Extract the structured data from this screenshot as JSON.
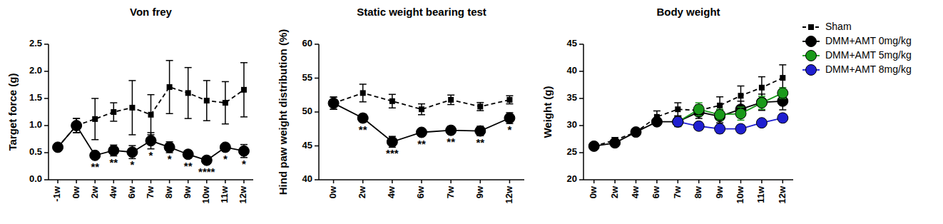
{
  "chart_data": [
    {
      "type": "line",
      "title": "Von frey",
      "y_label": "Target force (g)",
      "categories": [
        "-1w",
        "0w",
        "2w",
        "4w",
        "6w",
        "7w",
        "8w",
        "9w",
        "10w",
        "11w",
        "12w"
      ],
      "ylim": [
        0,
        2.5
      ],
      "yticks": [
        {
          "value": 0,
          "label": "0.0"
        },
        {
          "value": 0.5,
          "label": "0.5"
        },
        {
          "value": 1,
          "label": "1.0"
        },
        {
          "value": 1.5,
          "label": "1.5"
        },
        {
          "value": 2,
          "label": "2.0"
        },
        {
          "value": 2.5,
          "label": "2.5"
        }
      ],
      "series": [
        {
          "name": "Sham",
          "color": "#000000",
          "marker": "square",
          "line_style": "dashed",
          "values": [
            0.6,
            1.0,
            1.12,
            1.25,
            1.33,
            1.2,
            1.71,
            1.6,
            1.46,
            1.42,
            1.66
          ],
          "errors": [
            0.05,
            0.13,
            0.38,
            0.17,
            0.5,
            0.37,
            0.49,
            0.47,
            0.37,
            0.39,
            0.5
          ]
        },
        {
          "name": "DMM+AMT 0mg/kg",
          "color": "#000000",
          "marker": "circle",
          "line_style": "solid",
          "values": [
            0.6,
            1.0,
            0.45,
            0.54,
            0.51,
            0.72,
            0.6,
            0.47,
            0.36,
            0.6,
            0.53
          ],
          "errors": [
            0.06,
            0.13,
            0.05,
            0.1,
            0.12,
            0.15,
            0.1,
            0.07,
            0.04,
            0.06,
            0.12
          ],
          "significance": [
            null,
            null,
            "**",
            "**",
            "*",
            "*",
            "*",
            "**",
            "****",
            "*",
            "*"
          ]
        }
      ]
    },
    {
      "type": "line",
      "title": "Static weight bearing test",
      "y_label": "Hind paw weight distribution (%)",
      "categories": [
        "0w",
        "2w",
        "4w",
        "6w",
        "7w",
        "9w",
        "12w"
      ],
      "ylim": [
        40,
        60
      ],
      "yticks": [
        40,
        45,
        50,
        55,
        60
      ],
      "series": [
        {
          "name": "Sham",
          "color": "#000000",
          "marker": "square",
          "line_style": "dashed",
          "values": [
            51.3,
            52.8,
            51.6,
            50.4,
            51.8,
            50.8,
            51.8
          ],
          "errors": [
            0.9,
            1.3,
            1.0,
            0.8,
            0.7,
            0.6,
            0.6
          ]
        },
        {
          "name": "DMM+AMT 0mg/kg",
          "color": "#000000",
          "marker": "circle",
          "line_style": "solid",
          "values": [
            51.3,
            49.1,
            45.6,
            47.0,
            47.3,
            47.2,
            49.1
          ],
          "errors": [
            0.9,
            0.6,
            0.8,
            0.5,
            0.6,
            0.7,
            0.8
          ],
          "significance": [
            null,
            "**",
            "***",
            "**",
            "**",
            "**",
            "*"
          ]
        }
      ]
    },
    {
      "type": "line",
      "title": "Body weight",
      "y_label": "Weight (g)",
      "legend": "right",
      "categories": [
        "0w",
        "2w",
        "4w",
        "6w",
        "7w",
        "8w",
        "9w",
        "10w",
        "11w",
        "12w"
      ],
      "ylim": [
        20,
        45
      ],
      "yticks": [
        20,
        25,
        30,
        35,
        40,
        45
      ],
      "series": [
        {
          "name": "Sham",
          "color": "#000000",
          "marker": "square",
          "line_style": "dashed",
          "values": [
            26.2,
            27.3,
            28.8,
            31.6,
            33.0,
            32.8,
            33.7,
            35.5,
            37.0,
            38.8
          ],
          "errors": [
            0.4,
            0.5,
            0.5,
            1.1,
            1.2,
            1.0,
            1.6,
            1.8,
            2.0,
            2.4
          ]
        },
        {
          "name": "DMM+AMT 0mg/kg",
          "color": "#000000",
          "marker": "circle",
          "line_style": "solid",
          "values": [
            26.2,
            26.8,
            28.8,
            30.7,
            30.7,
            32.5,
            31.7,
            33.0,
            34.3,
            34.5
          ],
          "errors": [
            0.3,
            0.4,
            0.4,
            0.6,
            0.9,
            1.2,
            1.2,
            1.5,
            1.5,
            1.6
          ]
        },
        {
          "name": "DMM+AMT 5mg/kg",
          "color": "#1a9a1a",
          "marker": "circle",
          "line_style": "solid",
          "values": [
            null,
            null,
            null,
            null,
            30.7,
            33.0,
            32.0,
            32.2,
            34.2,
            36.0
          ],
          "errors": [
            null,
            null,
            null,
            null,
            0.8,
            1.2,
            1.0,
            1.2,
            1.2,
            1.0
          ]
        },
        {
          "name": "DMM+AMT 8mg/kg",
          "color": "#1f1fd0",
          "marker": "circle",
          "line_style": "solid",
          "values": [
            null,
            null,
            null,
            null,
            30.7,
            29.9,
            29.4,
            29.4,
            30.5,
            31.4
          ],
          "errors": [
            null,
            null,
            null,
            null,
            0.6,
            0.7,
            0.8,
            0.7,
            0.6,
            0.7
          ]
        }
      ]
    }
  ]
}
